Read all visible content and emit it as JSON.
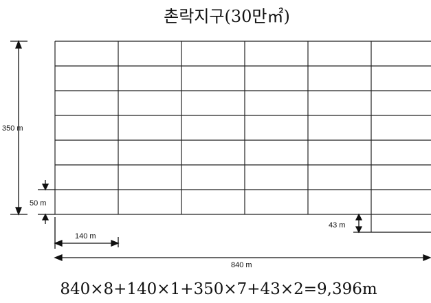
{
  "title": "촌락지구(30만㎡)",
  "dimensions": {
    "height_total": "350 m",
    "row_height": "50 m",
    "column_width": "140 m",
    "notch_height": "43 m",
    "width_total": "840 m"
  },
  "grid": {
    "columns": 6,
    "rows": 7
  },
  "formula": "840×8+140×1+350×7+43×2=9,396m"
}
